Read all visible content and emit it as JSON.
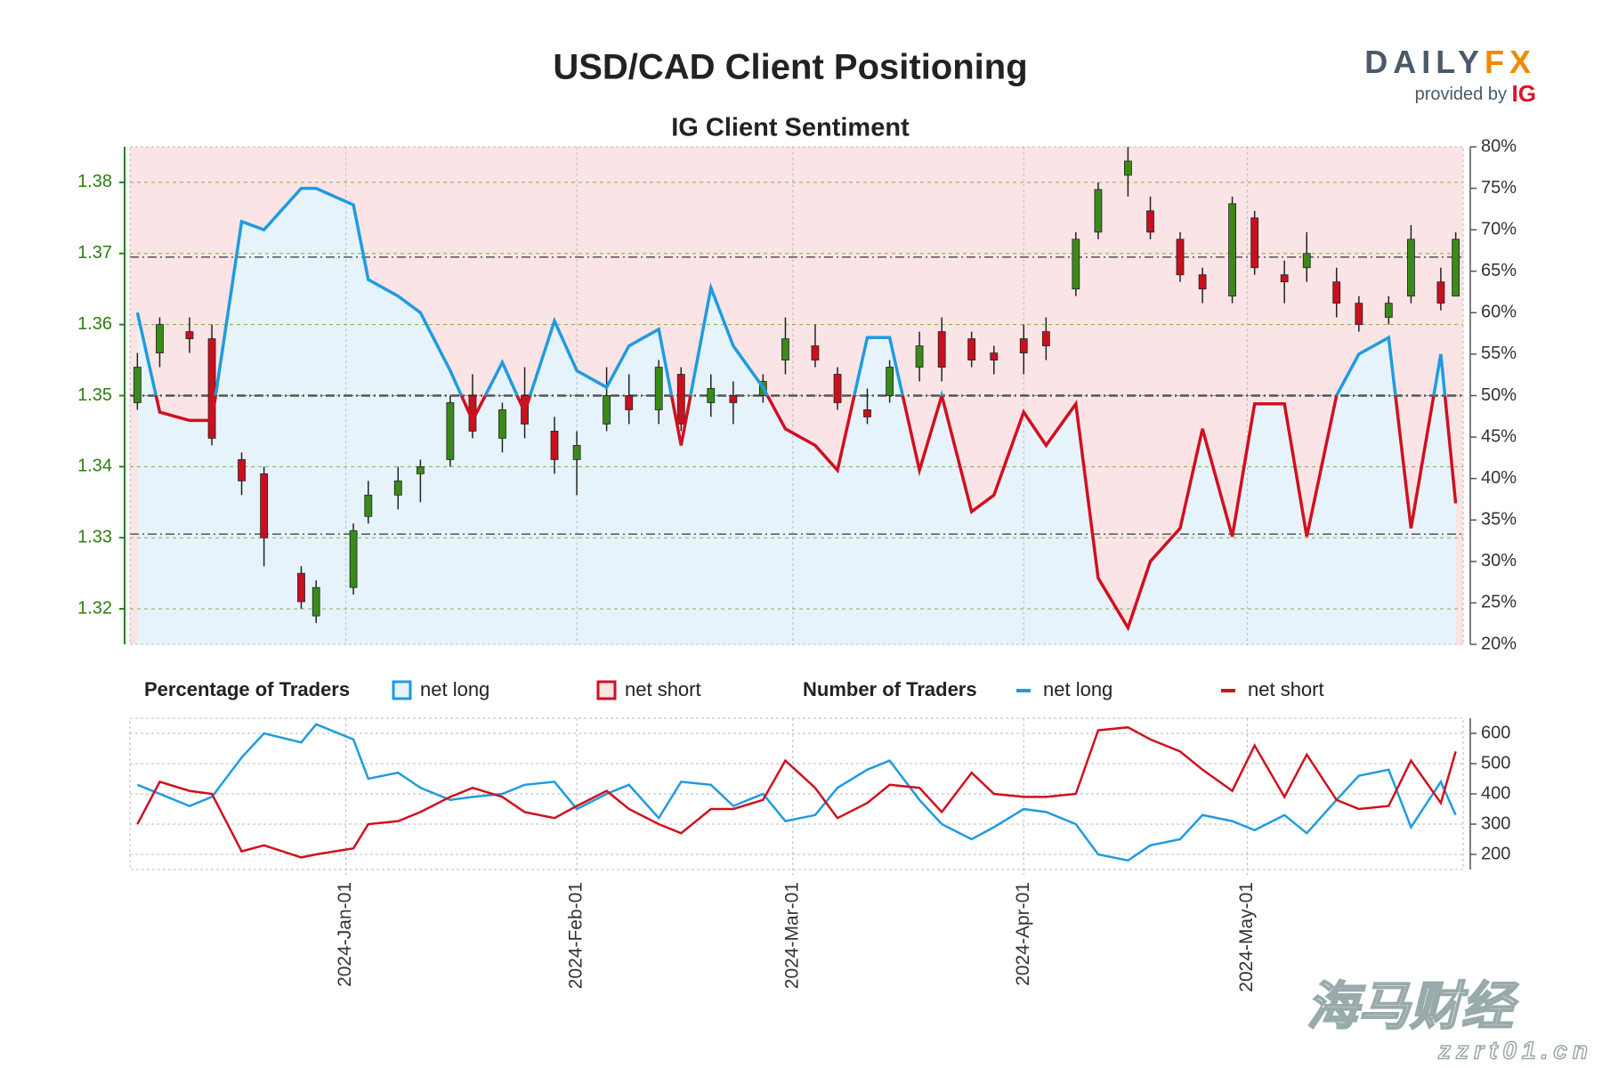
{
  "chart_data": [
    {
      "type": "candlestick",
      "title": "USD/CAD Client Positioning",
      "subtitle": "IG Client Sentiment",
      "logo": {
        "brand": "DAILY",
        "brand_accent": "FX",
        "tagline": "provided by",
        "tagline_accent": "IG"
      },
      "x": [
        "2023-12-04",
        "2023-12-07",
        "2023-12-11",
        "2023-12-14",
        "2023-12-18",
        "2023-12-21",
        "2023-12-26",
        "2023-12-28",
        "2024-01-02",
        "2024-01-04",
        "2024-01-08",
        "2024-01-11",
        "2024-01-15",
        "2024-01-18",
        "2024-01-22",
        "2024-01-25",
        "2024-01-29",
        "2024-02-01",
        "2024-02-05",
        "2024-02-08",
        "2024-02-12",
        "2024-02-15",
        "2024-02-19",
        "2024-02-22",
        "2024-02-26",
        "2024-02-29",
        "2024-03-04",
        "2024-03-07",
        "2024-03-11",
        "2024-03-14",
        "2024-03-18",
        "2024-03-21",
        "2024-03-25",
        "2024-03-28",
        "2024-04-01",
        "2024-04-04",
        "2024-04-08",
        "2024-04-11",
        "2024-04-15",
        "2024-04-18",
        "2024-04-22",
        "2024-04-25",
        "2024-04-29",
        "2024-05-02",
        "2024-05-06",
        "2024-05-09",
        "2024-05-13",
        "2024-05-16",
        "2024-05-20",
        "2024-05-23",
        "2024-05-27",
        "2024-05-29"
      ],
      "open": [
        1.349,
        1.356,
        1.359,
        1.358,
        1.341,
        1.339,
        1.325,
        1.319,
        1.323,
        1.333,
        1.336,
        1.339,
        1.341,
        1.35,
        1.344,
        1.35,
        1.345,
        1.341,
        1.346,
        1.35,
        1.348,
        1.353,
        1.349,
        1.35,
        1.35,
        1.355,
        1.357,
        1.353,
        1.348,
        1.35,
        1.354,
        1.359,
        1.358,
        1.356,
        1.358,
        1.359,
        1.365,
        1.373,
        1.381,
        1.376,
        1.372,
        1.367,
        1.364,
        1.375,
        1.367,
        1.368,
        1.366,
        1.363,
        1.361,
        1.364,
        1.366,
        1.364
      ],
      "high": [
        1.356,
        1.361,
        1.361,
        1.36,
        1.342,
        1.34,
        1.326,
        1.324,
        1.332,
        1.338,
        1.34,
        1.341,
        1.35,
        1.353,
        1.349,
        1.354,
        1.347,
        1.345,
        1.354,
        1.353,
        1.355,
        1.354,
        1.353,
        1.352,
        1.353,
        1.361,
        1.36,
        1.354,
        1.351,
        1.355,
        1.359,
        1.361,
        1.359,
        1.357,
        1.36,
        1.361,
        1.373,
        1.38,
        1.385,
        1.378,
        1.373,
        1.368,
        1.378,
        1.376,
        1.369,
        1.373,
        1.368,
        1.364,
        1.364,
        1.374,
        1.368,
        1.373
      ],
      "low": [
        1.348,
        1.354,
        1.356,
        1.343,
        1.336,
        1.326,
        1.32,
        1.318,
        1.322,
        1.332,
        1.334,
        1.335,
        1.34,
        1.344,
        1.342,
        1.344,
        1.339,
        1.336,
        1.345,
        1.346,
        1.346,
        1.345,
        1.347,
        1.346,
        1.349,
        1.353,
        1.354,
        1.348,
        1.346,
        1.349,
        1.352,
        1.352,
        1.354,
        1.353,
        1.353,
        1.355,
        1.364,
        1.372,
        1.378,
        1.372,
        1.366,
        1.363,
        1.363,
        1.367,
        1.363,
        1.366,
        1.361,
        1.359,
        1.36,
        1.363,
        1.362,
        1.364
      ],
      "close": [
        1.354,
        1.36,
        1.358,
        1.344,
        1.338,
        1.33,
        1.321,
        1.323,
        1.331,
        1.336,
        1.338,
        1.34,
        1.349,
        1.345,
        1.348,
        1.346,
        1.341,
        1.343,
        1.35,
        1.348,
        1.354,
        1.346,
        1.351,
        1.349,
        1.352,
        1.358,
        1.355,
        1.349,
        1.347,
        1.354,
        1.357,
        1.354,
        1.355,
        1.355,
        1.356,
        1.357,
        1.372,
        1.379,
        1.383,
        1.373,
        1.367,
        1.365,
        1.377,
        1.368,
        1.366,
        1.37,
        1.363,
        1.36,
        1.363,
        1.372,
        1.363,
        1.372
      ],
      "up_color": "#3a8a1a",
      "down_color": "#c8101f",
      "axis_color": "#2e7d12",
      "ylim": [
        1.315,
        1.385
      ],
      "yticks": [
        1.32,
        1.33,
        1.34,
        1.35,
        1.36,
        1.37,
        1.38
      ],
      "sentiment": {
        "name": "net long",
        "axis": "y2",
        "values": [
          60,
          48,
          47,
          47,
          71,
          70,
          75,
          75,
          73,
          64,
          62,
          60,
          53,
          47,
          54,
          48,
          59,
          53,
          51,
          56,
          58,
          44,
          63,
          56,
          51,
          46,
          44,
          41,
          57,
          57,
          41,
          50,
          36,
          38,
          48,
          44,
          49,
          28,
          22,
          30,
          34,
          46,
          33,
          49,
          49,
          33,
          50,
          55,
          57,
          34,
          55,
          37
        ]
      },
      "y2lim": [
        20,
        80
      ],
      "y2ticks": [
        {
          "value": 20,
          "label": "20%"
        },
        {
          "value": 25,
          "label": "25%"
        },
        {
          "value": 30,
          "label": "30%"
        },
        {
          "value": 35,
          "label": "35%"
        },
        {
          "value": 40,
          "label": "40%"
        },
        {
          "value": 45,
          "label": "45%"
        },
        {
          "value": 50,
          "label": "50%"
        },
        {
          "value": 55,
          "label": "55%"
        },
        {
          "value": 60,
          "label": "60%"
        },
        {
          "value": 65,
          "label": "65%"
        },
        {
          "value": 70,
          "label": "70%"
        },
        {
          "value": 75,
          "label": "75%"
        },
        {
          "value": 80,
          "label": "80%"
        }
      ],
      "y2_reference_lines": [
        33.3,
        50,
        66.7
      ],
      "legend_title": "Percentage of Traders",
      "legend": [
        {
          "name": "net long",
          "color": "#1f9be0",
          "fill": "#e6f3fb"
        },
        {
          "name": "net short",
          "color": "#d0101f",
          "fill": "#fbe4e6"
        }
      ]
    },
    {
      "type": "line",
      "legend_title": "Number of Traders",
      "x": [
        "2023-12-04",
        "2023-12-07",
        "2023-12-11",
        "2023-12-14",
        "2023-12-18",
        "2023-12-21",
        "2023-12-26",
        "2023-12-28",
        "2024-01-02",
        "2024-01-04",
        "2024-01-08",
        "2024-01-11",
        "2024-01-15",
        "2024-01-18",
        "2024-01-22",
        "2024-01-25",
        "2024-01-29",
        "2024-02-01",
        "2024-02-05",
        "2024-02-08",
        "2024-02-12",
        "2024-02-15",
        "2024-02-19",
        "2024-02-22",
        "2024-02-26",
        "2024-02-29",
        "2024-03-04",
        "2024-03-07",
        "2024-03-11",
        "2024-03-14",
        "2024-03-18",
        "2024-03-21",
        "2024-03-25",
        "2024-03-28",
        "2024-04-01",
        "2024-04-04",
        "2024-04-08",
        "2024-04-11",
        "2024-04-15",
        "2024-04-18",
        "2024-04-22",
        "2024-04-25",
        "2024-04-29",
        "2024-05-02",
        "2024-05-06",
        "2024-05-09",
        "2024-05-13",
        "2024-05-16",
        "2024-05-20",
        "2024-05-23",
        "2024-05-27",
        "2024-05-29"
      ],
      "series": [
        {
          "name": "net long",
          "color": "#1f9be0",
          "values": [
            430,
            400,
            360,
            390,
            520,
            600,
            570,
            630,
            580,
            450,
            470,
            420,
            380,
            390,
            400,
            430,
            440,
            350,
            400,
            430,
            320,
            440,
            430,
            360,
            400,
            310,
            330,
            420,
            480,
            510,
            380,
            300,
            250,
            290,
            350,
            340,
            300,
            200,
            180,
            230,
            250,
            330,
            310,
            280,
            330,
            270,
            380,
            460,
            480,
            290,
            440,
            330
          ]
        },
        {
          "name": "net short",
          "color": "#d0101f",
          "values": [
            300,
            440,
            410,
            400,
            210,
            230,
            190,
            200,
            220,
            300,
            310,
            340,
            390,
            420,
            390,
            340,
            320,
            360,
            410,
            350,
            300,
            270,
            350,
            350,
            380,
            510,
            420,
            320,
            370,
            430,
            420,
            340,
            470,
            400,
            390,
            390,
            400,
            610,
            620,
            580,
            540,
            480,
            410,
            560,
            390,
            530,
            380,
            350,
            360,
            510,
            370,
            540
          ]
        }
      ],
      "ylim": [
        150,
        650
      ],
      "yticks": [
        200,
        300,
        400,
        500,
        600
      ],
      "xlim": [
        "2023-12-03",
        "2024-05-30"
      ],
      "xticks": [
        {
          "value": "2024-01-01",
          "label": "2024-Jan-01"
        },
        {
          "value": "2024-02-01",
          "label": "2024-Feb-01"
        },
        {
          "value": "2024-03-01",
          "label": "2024-Mar-01"
        },
        {
          "value": "2024-04-01",
          "label": "2024-Apr-01"
        },
        {
          "value": "2024-05-01",
          "label": "2024-May-01"
        }
      ]
    }
  ],
  "watermark": {
    "name": "海马财经",
    "site": "zzrt01.cn"
  }
}
